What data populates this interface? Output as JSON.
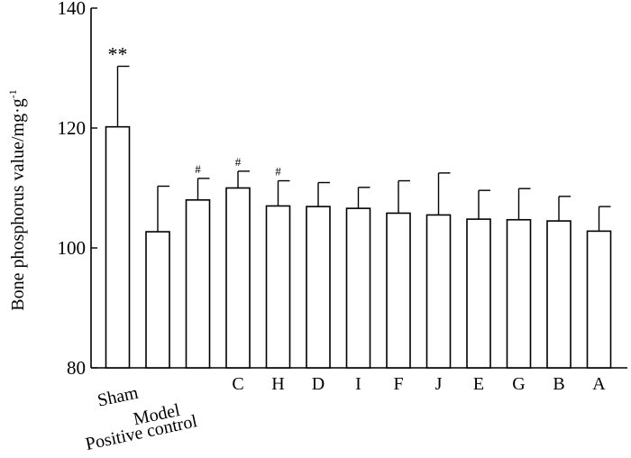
{
  "chart_data": {
    "type": "bar",
    "title": "",
    "xlabel": "",
    "ylabel": "Bone phosphorus value/mg·g",
    "ylabel_superscript": "-1",
    "ylim": [
      80,
      140
    ],
    "yticks": [
      80,
      100,
      120,
      140
    ],
    "grid": false,
    "categories": [
      "Sham",
      "Model",
      "Positive control",
      "C",
      "H",
      "D",
      "I",
      "F",
      "J",
      "E",
      "G",
      "B",
      "A"
    ],
    "values": [
      120.2,
      102.7,
      108.0,
      110.0,
      107.0,
      106.9,
      106.6,
      105.8,
      105.5,
      104.8,
      104.7,
      104.5,
      102.8
    ],
    "error": [
      10.1,
      7.6,
      3.6,
      2.8,
      4.2,
      4.0,
      3.5,
      5.4,
      7.0,
      4.8,
      5.2,
      4.1,
      4.1
    ],
    "annotations": [
      "**",
      "",
      "#",
      "#",
      "#",
      "",
      "",
      "",
      "",
      "",
      "",
      "",
      ""
    ]
  }
}
